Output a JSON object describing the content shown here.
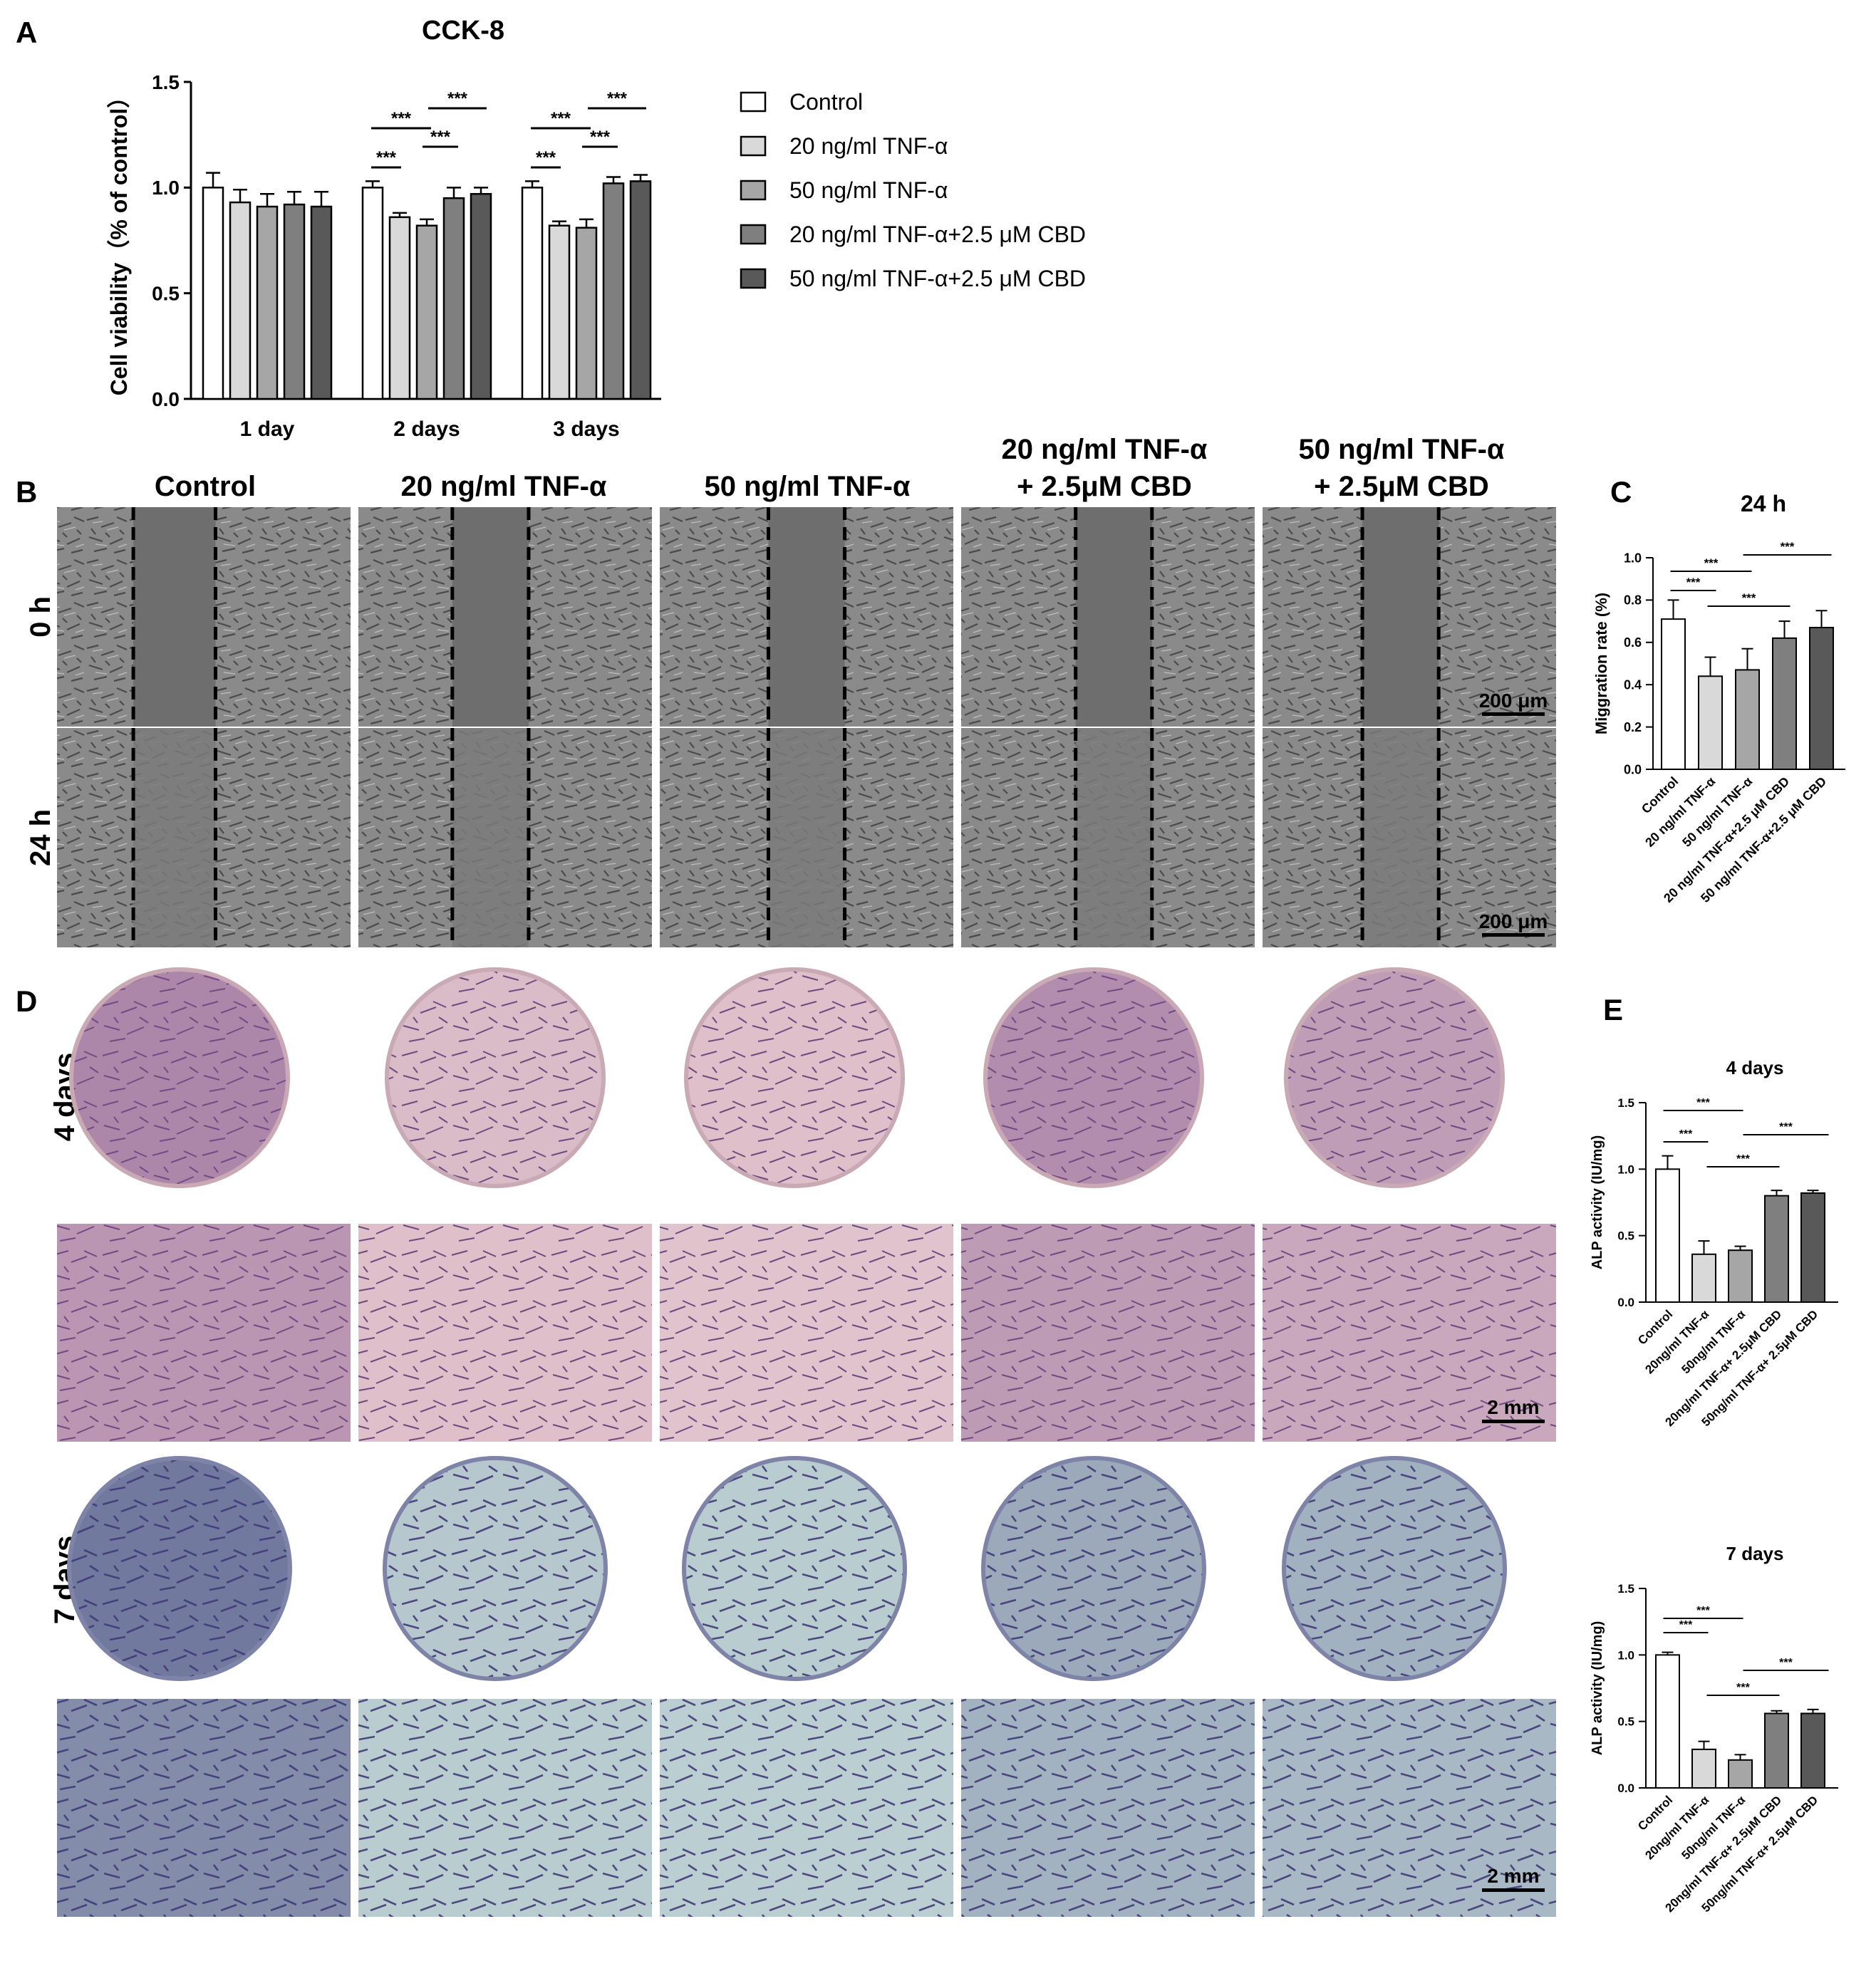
{
  "panel_labels": {
    "a": "A",
    "b": "B",
    "c": "C",
    "d": "D",
    "e": "E"
  },
  "significance": "***",
  "colors": {
    "control": "#ffffff",
    "tnf20": "#d9d9d9",
    "tnf50": "#a6a6a6",
    "tnf20_cbd": "#7f7f7f",
    "tnf50_cbd": "#595959",
    "stroke": "#000000"
  },
  "panel_a": {
    "legend": [
      "Control",
      "20 ng/ml TNF-α",
      "50 ng/ml TNF-α",
      "20 ng/ml TNF-α+2.5 μM CBD",
      "50 ng/ml TNF-α+2.5 μM CBD"
    ]
  },
  "panel_b": {
    "columns": [
      "Control",
      "20 ng/ml TNF-α",
      "50 ng/ml TNF-α",
      "20 ng/ml TNF-α",
      "+ 2.5μM CBD",
      "50 ng/ml TNF-α",
      "+ 2.5μM CBD"
    ],
    "rows": [
      "0 h",
      "24 h"
    ],
    "scale_bar": "200 μm"
  },
  "panel_d": {
    "rows": [
      "4 days",
      "7 days"
    ],
    "scale_bar": "2 mm"
  },
  "chart_data": [
    {
      "id": "cck8",
      "type": "bar",
      "title": "CCK-8",
      "ylabel": "Cell viability（% of control）",
      "categories": [
        "1 day",
        "2 days",
        "3 days"
      ],
      "ylim": [
        0,
        1.5
      ],
      "yticks": [
        "0.0",
        "0.5",
        "1.0",
        "1.5"
      ],
      "series": [
        {
          "name": "Control",
          "values": [
            1.0,
            1.0,
            1.0
          ],
          "errors": [
            0.07,
            0.03,
            0.03
          ]
        },
        {
          "name": "20 ng/ml TNF-α",
          "values": [
            0.93,
            0.86,
            0.82
          ],
          "errors": [
            0.06,
            0.02,
            0.02
          ]
        },
        {
          "name": "50 ng/ml TNF-α",
          "values": [
            0.91,
            0.82,
            0.81
          ],
          "errors": [
            0.06,
            0.03,
            0.04
          ]
        },
        {
          "name": "20 ng/ml TNF-α+2.5 μM CBD",
          "values": [
            0.92,
            0.95,
            1.02
          ],
          "errors": [
            0.06,
            0.05,
            0.03
          ]
        },
        {
          "name": "50 ng/ml TNF-α+2.5 μM CBD",
          "values": [
            0.91,
            0.97,
            1.03
          ],
          "errors": [
            0.07,
            0.03,
            0.03
          ]
        }
      ]
    },
    {
      "id": "migration",
      "type": "bar",
      "title": "24 h",
      "ylabel": "Miggration rate (%)",
      "categories": [
        "Control",
        "20 ng/ml TNF-α",
        "50 ng/ml TNF-α",
        "20 ng/ml TNF-α+2.5 μM CBD",
        "50 ng/ml TNF-α+2.5 μM CBD"
      ],
      "ylim": [
        0,
        1.0
      ],
      "yticks": [
        "0.0",
        "0.2",
        "0.4",
        "0.6",
        "0.8",
        "1.0"
      ],
      "values": [
        0.71,
        0.44,
        0.47,
        0.62,
        0.67
      ],
      "errors": [
        0.09,
        0.09,
        0.1,
        0.08,
        0.08
      ]
    },
    {
      "id": "alp4",
      "type": "bar",
      "title": "4 days",
      "ylabel": "ALP activity (IU/mg)",
      "categories": [
        "Control",
        "20ng/ml TNF-α",
        "50ng/ml TNF-α",
        "20ng/ml TNF-α+ 2.5μM CBD",
        "50ng/ml TNF-α+ 2.5μM CBD"
      ],
      "ylim": [
        0,
        1.5
      ],
      "yticks": [
        "0.0",
        "0.5",
        "1.0",
        "1.5"
      ],
      "values": [
        1.0,
        0.36,
        0.39,
        0.8,
        0.82
      ],
      "errors": [
        0.1,
        0.1,
        0.03,
        0.04,
        0.02
      ]
    },
    {
      "id": "alp7",
      "type": "bar",
      "title": "7 days",
      "ylabel": "ALP activity (IU/mg)",
      "categories": [
        "Control",
        "20ng/ml TNF-α",
        "50ng/ml TNF-α",
        "20ng/ml TNF-α+ 2.5μM CBD",
        "50ng/ml TNF-α+ 2.5μM CBD"
      ],
      "ylim": [
        0,
        1.5
      ],
      "yticks": [
        "0.0",
        "0.5",
        "1.0",
        "1.5"
      ],
      "values": [
        1.0,
        0.29,
        0.21,
        0.56,
        0.56
      ],
      "errors": [
        0.02,
        0.06,
        0.04,
        0.02,
        0.03
      ]
    }
  ]
}
